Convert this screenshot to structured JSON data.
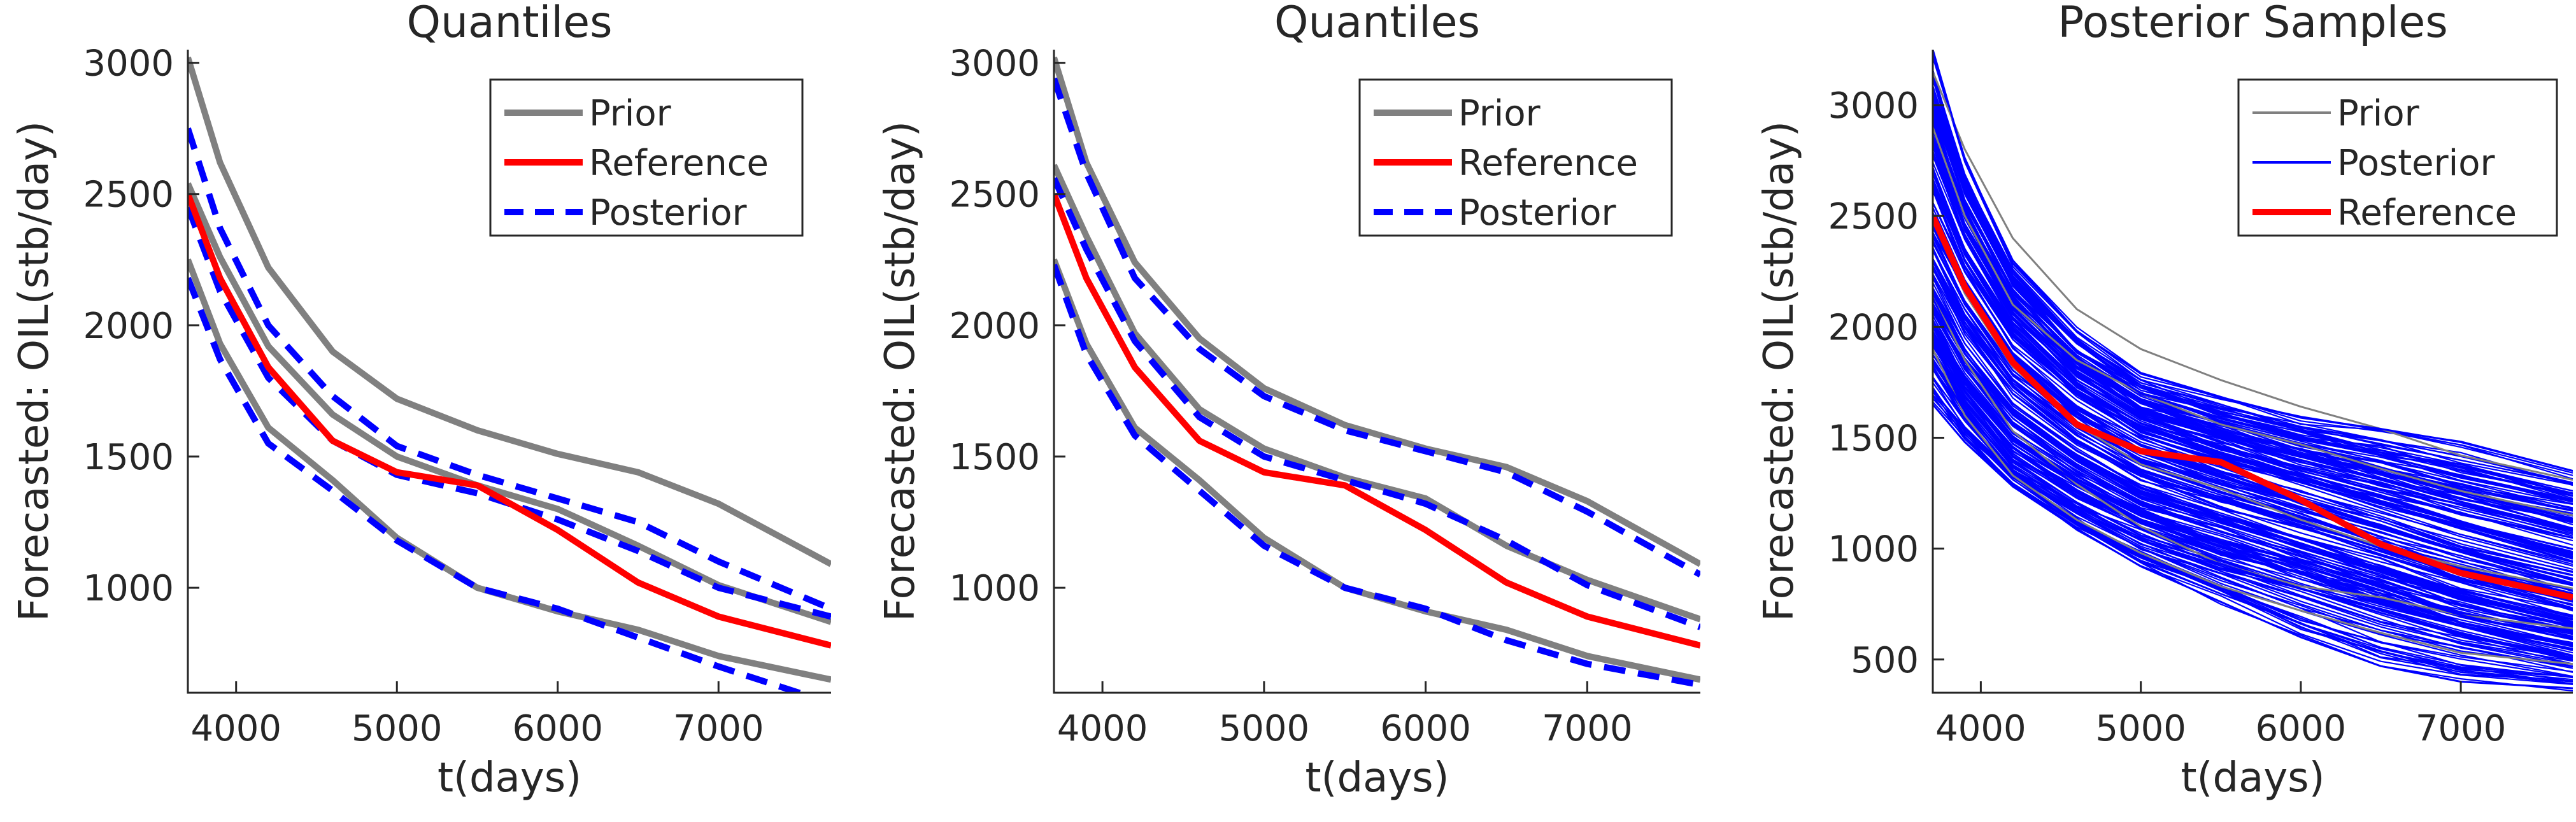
{
  "figure": {
    "colors": {
      "prior": "#808080",
      "reference": "#ff0000",
      "posterior": "#0000ff",
      "axis": "#262626"
    }
  },
  "chart_data": [
    {
      "type": "line",
      "title": "Quantiles",
      "xlabel": "t(days)",
      "ylabel": "Forecasted: OIL(stb/day)",
      "xlim": [
        3700,
        7700
      ],
      "ylim": [
        600,
        3050
      ],
      "xticks": [
        4000,
        5000,
        6000,
        7000
      ],
      "yticks": [
        1000,
        1500,
        2000,
        2500,
        3000
      ],
      "grid": false,
      "legend_position": "top-right",
      "legend": [
        {
          "label": "Prior",
          "style": "prior"
        },
        {
          "label": "Reference",
          "style": "reference"
        },
        {
          "label": "Posterior",
          "style": "posterior"
        }
      ],
      "x": [
        3700,
        3900,
        4200,
        4600,
        5000,
        5500,
        6000,
        6500,
        7000,
        7700
      ],
      "series": [
        {
          "name": "Prior",
          "style": "prior",
          "values": [
            3020,
            2620,
            2220,
            1900,
            1720,
            1600,
            1510,
            1440,
            1320,
            1090
          ]
        },
        {
          "name": "Prior",
          "style": "prior",
          "values": [
            2540,
            2260,
            1920,
            1660,
            1500,
            1390,
            1300,
            1160,
            1010,
            870
          ]
        },
        {
          "name": "Prior",
          "style": "prior",
          "values": [
            2250,
            1930,
            1610,
            1410,
            1190,
            1000,
            910,
            840,
            740,
            650
          ]
        },
        {
          "name": "Reference",
          "style": "reference",
          "values": [
            2500,
            2180,
            1840,
            1560,
            1440,
            1390,
            1220,
            1020,
            890,
            780
          ]
        },
        {
          "name": "Posterior",
          "style": "posterior",
          "values": [
            2750,
            2370,
            2000,
            1730,
            1540,
            1430,
            1340,
            1250,
            1100,
            920
          ]
        },
        {
          "name": "Posterior",
          "style": "posterior",
          "values": [
            2450,
            2130,
            1800,
            1560,
            1430,
            1360,
            1260,
            1140,
            1000,
            890
          ]
        },
        {
          "name": "Posterior",
          "style": "posterior",
          "values": [
            2180,
            1870,
            1550,
            1370,
            1180,
            1000,
            920,
            810,
            700,
            560
          ]
        }
      ]
    },
    {
      "type": "line",
      "title": "Quantiles",
      "xlabel": "t(days)",
      "ylabel": "Forecasted: OIL(stb/day)",
      "xlim": [
        3700,
        7700
      ],
      "ylim": [
        600,
        3050
      ],
      "xticks": [
        4000,
        5000,
        6000,
        7000
      ],
      "yticks": [
        1000,
        1500,
        2000,
        2500,
        3000
      ],
      "grid": false,
      "legend_position": "top-right",
      "legend": [
        {
          "label": "Prior",
          "style": "prior"
        },
        {
          "label": "Reference",
          "style": "reference"
        },
        {
          "label": "Posterior",
          "style": "posterior"
        }
      ],
      "x": [
        3700,
        3900,
        4200,
        4600,
        5000,
        5500,
        6000,
        6500,
        7000,
        7700
      ],
      "series": [
        {
          "name": "Prior",
          "style": "prior",
          "values": [
            3020,
            2620,
            2240,
            1950,
            1760,
            1620,
            1530,
            1460,
            1330,
            1090
          ]
        },
        {
          "name": "Prior",
          "style": "prior",
          "values": [
            2610,
            2340,
            1970,
            1680,
            1530,
            1420,
            1340,
            1160,
            1030,
            880
          ]
        },
        {
          "name": "Prior",
          "style": "prior",
          "values": [
            2250,
            1930,
            1610,
            1410,
            1190,
            1000,
            910,
            840,
            740,
            650
          ]
        },
        {
          "name": "Reference",
          "style": "reference",
          "values": [
            2500,
            2180,
            1840,
            1560,
            1440,
            1390,
            1220,
            1020,
            890,
            780
          ]
        },
        {
          "name": "Posterior",
          "style": "posterior",
          "values": [
            2940,
            2580,
            2180,
            1910,
            1730,
            1600,
            1520,
            1440,
            1290,
            1050
          ]
        },
        {
          "name": "Posterior",
          "style": "posterior",
          "values": [
            2560,
            2290,
            1940,
            1650,
            1500,
            1410,
            1320,
            1180,
            1010,
            850
          ]
        },
        {
          "name": "Posterior",
          "style": "posterior",
          "values": [
            2230,
            1890,
            1580,
            1370,
            1160,
            1000,
            920,
            800,
            710,
            630
          ]
        }
      ]
    },
    {
      "type": "line",
      "title": "Posterior Samples",
      "xlabel": "t(days)",
      "ylabel": "Forecasted: OIL(stb/day)",
      "xlim": [
        3700,
        7700
      ],
      "ylim": [
        350,
        3250
      ],
      "xticks": [
        4000,
        5000,
        6000,
        7000
      ],
      "yticks": [
        500,
        1000,
        1500,
        2000,
        2500,
        3000
      ],
      "grid": false,
      "legend_position": "top-right",
      "legend": [
        {
          "label": "Prior",
          "style": "prior_thin"
        },
        {
          "label": "Posterior",
          "style": "posterior_thin"
        },
        {
          "label": "Reference",
          "style": "reference"
        }
      ],
      "x": [
        3700,
        3900,
        4200,
        4600,
        5000,
        5500,
        6000,
        6500,
        7000,
        7700
      ],
      "series_note_count": 200,
      "series": [
        {
          "name": "Prior",
          "style": "prior_thin",
          "values": [
            3150,
            2800,
            2400,
            2080,
            1900,
            1760,
            1640,
            1540,
            1420,
            1310
          ]
        },
        {
          "name": "Prior",
          "style": "prior_thin",
          "values": [
            2900,
            2500,
            2100,
            1850,
            1700,
            1560,
            1470,
            1360,
            1260,
            1150
          ]
        },
        {
          "name": "Prior",
          "style": "prior_thin",
          "values": [
            2500,
            2150,
            1820,
            1560,
            1380,
            1270,
            1130,
            1010,
            920,
            820
          ]
        },
        {
          "name": "Prior",
          "style": "prior_thin",
          "values": [
            2150,
            1850,
            1530,
            1290,
            1100,
            930,
            830,
            780,
            700,
            640
          ]
        },
        {
          "name": "Prior",
          "style": "prior_thin",
          "values": [
            1900,
            1600,
            1330,
            1130,
            980,
            830,
            720,
            620,
            530,
            480
          ]
        },
        {
          "name": "Posterior",
          "style": "posterior_thin",
          "values": [
            3250,
            2750,
            2300,
            1980,
            1790,
            1680,
            1590,
            1540,
            1480,
            1350
          ]
        },
        {
          "name": "Posterior",
          "style": "posterior_thin",
          "values": [
            3050,
            2600,
            2190,
            1890,
            1700,
            1590,
            1500,
            1420,
            1330,
            1220
          ]
        },
        {
          "name": "Posterior",
          "style": "posterior_thin",
          "values": [
            2850,
            2450,
            2080,
            1800,
            1620,
            1500,
            1400,
            1310,
            1210,
            1080
          ]
        },
        {
          "name": "Posterior",
          "style": "posterior_thin",
          "values": [
            2650,
            2300,
            1960,
            1700,
            1530,
            1410,
            1300,
            1200,
            1090,
            960
          ]
        },
        {
          "name": "Posterior",
          "style": "posterior_thin",
          "values": [
            2450,
            2160,
            1850,
            1610,
            1440,
            1320,
            1210,
            1100,
            990,
            860
          ]
        },
        {
          "name": "Posterior",
          "style": "posterior_thin",
          "values": [
            2300,
            2020,
            1730,
            1510,
            1350,
            1230,
            1120,
            1000,
            890,
            760
          ]
        },
        {
          "name": "Posterior",
          "style": "posterior_thin",
          "values": [
            2150,
            1880,
            1610,
            1410,
            1250,
            1130,
            1020,
            910,
            790,
            670
          ]
        },
        {
          "name": "Posterior",
          "style": "posterior_thin",
          "values": [
            2000,
            1750,
            1490,
            1300,
            1150,
            1030,
            920,
            810,
            700,
            590
          ]
        },
        {
          "name": "Posterior",
          "style": "posterior_thin",
          "values": [
            1850,
            1620,
            1370,
            1190,
            1050,
            930,
            820,
            710,
            610,
            500
          ]
        },
        {
          "name": "Posterior",
          "style": "posterior_thin",
          "values": [
            1650,
            1480,
            1280,
            1090,
            920,
            760,
            600,
            470,
            400,
            370
          ]
        },
        {
          "name": "Reference",
          "style": "reference",
          "values": [
            2500,
            2180,
            1840,
            1560,
            1440,
            1390,
            1220,
            1020,
            890,
            780
          ]
        }
      ]
    }
  ]
}
